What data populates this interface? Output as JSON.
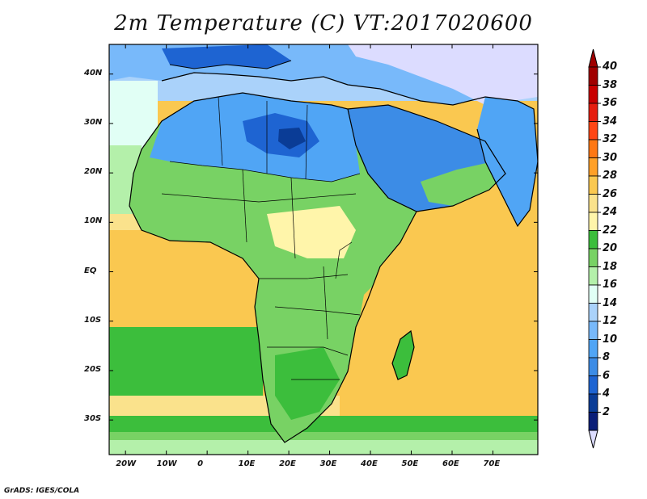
{
  "title": "2m Temperature (C) VT:2017020600",
  "credit": "GrADS: IGES/COLA",
  "map": {
    "region": "Africa and Middle East",
    "lon_range": [
      -24,
      81
    ],
    "lat_range": [
      -37,
      46
    ],
    "variable": "2m Temperature",
    "units": "C",
    "lon_ticks": [
      {
        "value": -20,
        "label": "20W"
      },
      {
        "value": -10,
        "label": "10W"
      },
      {
        "value": 0,
        "label": "0"
      },
      {
        "value": 10,
        "label": "10E"
      },
      {
        "value": 20,
        "label": "20E"
      },
      {
        "value": 30,
        "label": "30E"
      },
      {
        "value": 40,
        "label": "40E"
      },
      {
        "value": 50,
        "label": "50E"
      },
      {
        "value": 60,
        "label": "60E"
      },
      {
        "value": 70,
        "label": "70E"
      }
    ],
    "lat_ticks": [
      {
        "value": 40,
        "label": "40N"
      },
      {
        "value": 30,
        "label": "30N"
      },
      {
        "value": 20,
        "label": "20N"
      },
      {
        "value": 10,
        "label": "10N"
      },
      {
        "value": 0,
        "label": "EQ"
      },
      {
        "value": -10,
        "label": "10S"
      },
      {
        "value": -20,
        "label": "20S"
      },
      {
        "value": -30,
        "label": "30S"
      }
    ]
  },
  "colorbar": {
    "levels": [
      {
        "label": "40",
        "color": "#a00000"
      },
      {
        "label": "38",
        "color": "#c80000"
      },
      {
        "label": "36",
        "color": "#e61e0f"
      },
      {
        "label": "34",
        "color": "#ff4614"
      },
      {
        "label": "32",
        "color": "#ff7814"
      },
      {
        "label": "30",
        "color": "#ffa028"
      },
      {
        "label": "28",
        "color": "#fac850"
      },
      {
        "label": "26",
        "color": "#fae28c"
      },
      {
        "label": "24",
        "color": "#fff5aa"
      },
      {
        "label": "22",
        "color": "#3cbe3c"
      },
      {
        "label": "20",
        "color": "#78d264"
      },
      {
        "label": "18",
        "color": "#b4f0aa"
      },
      {
        "label": "16",
        "color": "#e1fff5"
      },
      {
        "label": "14",
        "color": "#aad2fa"
      },
      {
        "label": "12",
        "color": "#78b9fa"
      },
      {
        "label": "10",
        "color": "#50a5f5"
      },
      {
        "label": "8",
        "color": "#3c8ce6"
      },
      {
        "label": "6",
        "color": "#1e64d2"
      },
      {
        "label": "4",
        "color": "#0a3c96"
      },
      {
        "label": "2",
        "color": "#0a1e78"
      }
    ],
    "over_color": "#a00000",
    "under_color": "#dcdcff"
  }
}
